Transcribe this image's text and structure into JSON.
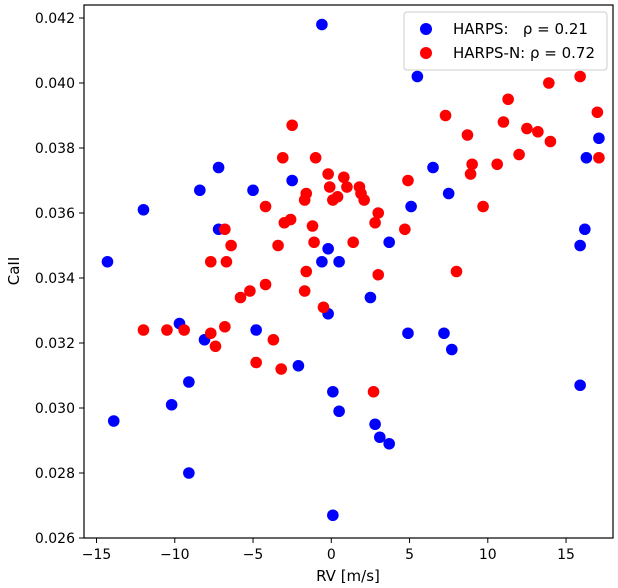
{
  "chart_data": {
    "type": "scatter",
    "xlabel": "RV [m/s]",
    "ylabel": "CaII",
    "xlim": [
      -15.8,
      18.0
    ],
    "ylim": [
      0.026,
      0.0424
    ],
    "xticks": [
      -15,
      -10,
      -5,
      0,
      5,
      10,
      15
    ],
    "xtick_labels": [
      "−15",
      "−10",
      "−5",
      "0",
      "5",
      "10",
      "15"
    ],
    "yticks": [
      0.026,
      0.028,
      0.03,
      0.032,
      0.034,
      0.036,
      0.038,
      0.04,
      0.042
    ],
    "ytick_labels": [
      "0.026",
      "0.028",
      "0.030",
      "0.032",
      "0.034",
      "0.036",
      "0.038",
      "0.040",
      "0.042"
    ],
    "grid": false,
    "legend_position": "top-right",
    "series": [
      {
        "name": "HARPS:   ρ = 0.21",
        "color": "#0000ff",
        "points": [
          [
            -0.6,
            0.0418
          ],
          [
            5.5,
            0.0402
          ],
          [
            17.1,
            0.0383
          ],
          [
            16.3,
            0.0377
          ],
          [
            6.5,
            0.0374
          ],
          [
            -7.2,
            0.0374
          ],
          [
            -2.5,
            0.037
          ],
          [
            -8.4,
            0.0367
          ],
          [
            -5.0,
            0.0367
          ],
          [
            7.5,
            0.0366
          ],
          [
            5.1,
            0.0362
          ],
          [
            -12.0,
            0.0361
          ],
          [
            -7.2,
            0.0355
          ],
          [
            16.2,
            0.0355
          ],
          [
            3.7,
            0.0351
          ],
          [
            15.9,
            0.035
          ],
          [
            -0.2,
            0.0349
          ],
          [
            -0.6,
            0.0345
          ],
          [
            0.5,
            0.0345
          ],
          [
            -14.3,
            0.0345
          ],
          [
            2.5,
            0.0334
          ],
          [
            -0.2,
            0.0329
          ],
          [
            -9.7,
            0.0326
          ],
          [
            -4.8,
            0.0324
          ],
          [
            4.9,
            0.0323
          ],
          [
            7.2,
            0.0323
          ],
          [
            -8.1,
            0.0321
          ],
          [
            7.7,
            0.0318
          ],
          [
            -2.1,
            0.0313
          ],
          [
            -9.1,
            0.0308
          ],
          [
            15.9,
            0.0307
          ],
          [
            0.1,
            0.0305
          ],
          [
            -10.2,
            0.0301
          ],
          [
            0.5,
            0.0299
          ],
          [
            -13.9,
            0.0296
          ],
          [
            2.8,
            0.0295
          ],
          [
            3.1,
            0.0291
          ],
          [
            3.7,
            0.0289
          ],
          [
            -9.1,
            0.028
          ],
          [
            0.1,
            0.0267
          ]
        ]
      },
      {
        "name": "HARPS-N: ρ = 0.72",
        "color": "#ff0000",
        "points": [
          [
            15.9,
            0.0402
          ],
          [
            13.9,
            0.04
          ],
          [
            11.3,
            0.0395
          ],
          [
            17.0,
            0.0391
          ],
          [
            7.3,
            0.039
          ],
          [
            11.0,
            0.0388
          ],
          [
            -2.5,
            0.0387
          ],
          [
            12.5,
            0.0386
          ],
          [
            13.2,
            0.0385
          ],
          [
            8.7,
            0.0384
          ],
          [
            14.0,
            0.0382
          ],
          [
            12.0,
            0.0378
          ],
          [
            -3.1,
            0.0377
          ],
          [
            -1.0,
            0.0377
          ],
          [
            17.1,
            0.0377
          ],
          [
            9.0,
            0.0375
          ],
          [
            10.6,
            0.0375
          ],
          [
            -1.6,
            0.0366
          ],
          [
            -0.2,
            0.0372
          ],
          [
            0.8,
            0.0371
          ],
          [
            8.9,
            0.0372
          ],
          [
            4.9,
            0.037
          ],
          [
            -0.1,
            0.0368
          ],
          [
            1.0,
            0.0368
          ],
          [
            1.8,
            0.0368
          ],
          [
            1.9,
            0.0366
          ],
          [
            -1.7,
            0.0364
          ],
          [
            0.1,
            0.0364
          ],
          [
            2.1,
            0.0364
          ],
          [
            -4.2,
            0.0362
          ],
          [
            0.4,
            0.0365
          ],
          [
            9.7,
            0.0362
          ],
          [
            -2.6,
            0.0358
          ],
          [
            -3.0,
            0.0357
          ],
          [
            -1.2,
            0.0356
          ],
          [
            2.8,
            0.0357
          ],
          [
            3.0,
            0.036
          ],
          [
            4.7,
            0.0355
          ],
          [
            -6.8,
            0.0355
          ],
          [
            -3.4,
            0.035
          ],
          [
            -1.1,
            0.0351
          ],
          [
            1.4,
            0.0351
          ],
          [
            -6.4,
            0.035
          ],
          [
            -7.7,
            0.0345
          ],
          [
            -6.7,
            0.0345
          ],
          [
            -1.6,
            0.0342
          ],
          [
            3.0,
            0.0341
          ],
          [
            8.0,
            0.0342
          ],
          [
            -4.2,
            0.0338
          ],
          [
            -5.2,
            0.0336
          ],
          [
            -1.7,
            0.0336
          ],
          [
            -5.8,
            0.0334
          ],
          [
            -0.5,
            0.0331
          ],
          [
            -12.0,
            0.0324
          ],
          [
            -10.5,
            0.0324
          ],
          [
            -9.4,
            0.0324
          ],
          [
            -6.8,
            0.0325
          ],
          [
            -7.7,
            0.0323
          ],
          [
            -3.7,
            0.0321
          ],
          [
            -7.4,
            0.0319
          ],
          [
            -4.8,
            0.0314
          ],
          [
            -3.2,
            0.0312
          ],
          [
            2.7,
            0.0305
          ]
        ]
      }
    ]
  }
}
